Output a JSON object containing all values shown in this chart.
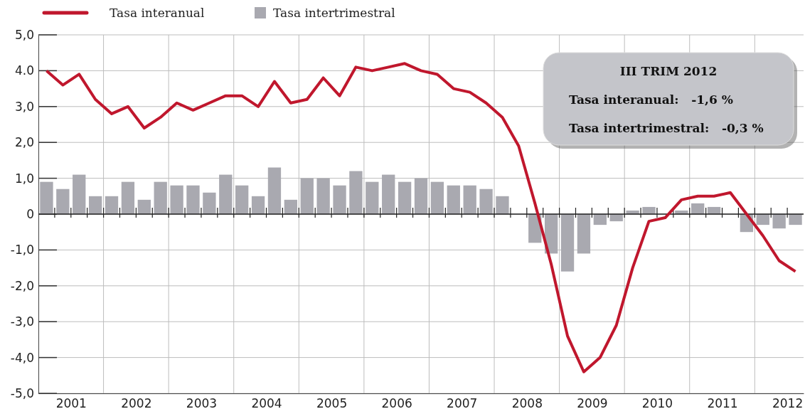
{
  "chart_data": {
    "type": "bar",
    "x": [
      2001.125,
      2001.375,
      2001.625,
      2001.875,
      2002.125,
      2002.375,
      2002.625,
      2002.875,
      2003.125,
      2003.375,
      2003.625,
      2003.875,
      2004.125,
      2004.375,
      2004.625,
      2004.875,
      2005.125,
      2005.375,
      2005.625,
      2005.875,
      2006.125,
      2006.375,
      2006.625,
      2006.875,
      2007.125,
      2007.375,
      2007.625,
      2007.875,
      2008.125,
      2008.375,
      2008.625,
      2008.875,
      2009.125,
      2009.375,
      2009.625,
      2009.875,
      2010.125,
      2010.375,
      2010.625,
      2010.875,
      2011.125,
      2011.375,
      2011.625,
      2011.875,
      2012.125,
      2012.375,
      2012.625
    ],
    "series": [
      {
        "name": "Tasa interanual",
        "type": "line",
        "color": "#c0172d",
        "values": [
          4.0,
          3.6,
          3.9,
          3.2,
          2.8,
          3.0,
          2.4,
          2.7,
          3.1,
          2.9,
          3.1,
          3.3,
          3.3,
          3.0,
          3.7,
          3.1,
          3.2,
          3.8,
          3.3,
          4.1,
          4.0,
          4.1,
          4.2,
          4.0,
          3.9,
          3.5,
          3.4,
          3.1,
          2.7,
          1.9,
          0.3,
          -1.4,
          -3.4,
          -4.4,
          -4.0,
          -3.1,
          -1.5,
          -0.2,
          -0.1,
          0.4,
          0.5,
          0.5,
          0.6,
          0.0,
          -0.6,
          -1.3,
          -1.6
        ]
      },
      {
        "name": "Tasa intertrimestral",
        "color": "#a9a9b0",
        "values": [
          0.9,
          0.7,
          1.1,
          0.5,
          0.5,
          0.9,
          0.4,
          0.9,
          0.8,
          0.8,
          0.6,
          1.1,
          0.8,
          0.5,
          1.3,
          0.4,
          1.0,
          1.0,
          0.8,
          1.2,
          0.9,
          1.1,
          0.9,
          1.0,
          0.9,
          0.8,
          0.8,
          0.7,
          0.5,
          0.0,
          -0.8,
          -1.1,
          -1.6,
          -1.1,
          -0.3,
          -0.2,
          0.1,
          0.2,
          0.0,
          0.1,
          0.3,
          0.2,
          0.0,
          -0.5,
          -0.3,
          -0.4,
          -0.3
        ]
      }
    ],
    "xlim": [
      2001,
      2012.75
    ],
    "xticks": [
      {
        "value": 2001.5,
        "label": "2001"
      },
      {
        "value": 2002,
        "label": null
      },
      {
        "value": 2002.5,
        "label": "2002"
      },
      {
        "value": 2003,
        "label": null
      },
      {
        "value": 2003.5,
        "label": "2003"
      },
      {
        "value": 2004,
        "label": null
      },
      {
        "value": 2004.5,
        "label": "2004"
      },
      {
        "value": 2005,
        "label": null
      },
      {
        "value": 2005.5,
        "label": "2005"
      },
      {
        "value": 2006,
        "label": null
      },
      {
        "value": 2006.5,
        "label": "2006"
      },
      {
        "value": 2007,
        "label": null
      },
      {
        "value": 2007.5,
        "label": "2007"
      },
      {
        "value": 2008,
        "label": null
      },
      {
        "value": 2008.5,
        "label": "2008"
      },
      {
        "value": 2009,
        "label": null
      },
      {
        "value": 2009.5,
        "label": "2009"
      },
      {
        "value": 2010,
        "label": null
      },
      {
        "value": 2010.5,
        "label": "2010"
      },
      {
        "value": 2011,
        "label": null
      },
      {
        "value": 2011.5,
        "label": "2011"
      },
      {
        "value": 2012,
        "label": null
      },
      {
        "value": 2012.5,
        "label": "2012"
      }
    ],
    "ylim": [
      -5,
      5
    ],
    "yticks": [
      {
        "value": 5,
        "label": "5,0"
      },
      {
        "value": 4,
        "label": "4.0"
      },
      {
        "value": 3,
        "label": "3,0"
      },
      {
        "value": 2,
        "label": "2,0"
      },
      {
        "value": 1,
        "label": "1,0"
      },
      0,
      {
        "value": -1,
        "label": "-1,0"
      },
      {
        "value": -2,
        "label": "-2,0"
      },
      {
        "value": -3,
        "label": "-3,0"
      },
      {
        "value": -4,
        "label": "-4,0"
      },
      {
        "value": -5,
        "label": "-5,0"
      }
    ],
    "grid": true,
    "legend": "top left",
    "line_style": "solid",
    "marker": "none",
    "annotations": [
      "III TRIM 2012",
      "Tasa interanual:   -1,6 %",
      "Tasa intertrimestral:   -0,3 %"
    ]
  }
}
